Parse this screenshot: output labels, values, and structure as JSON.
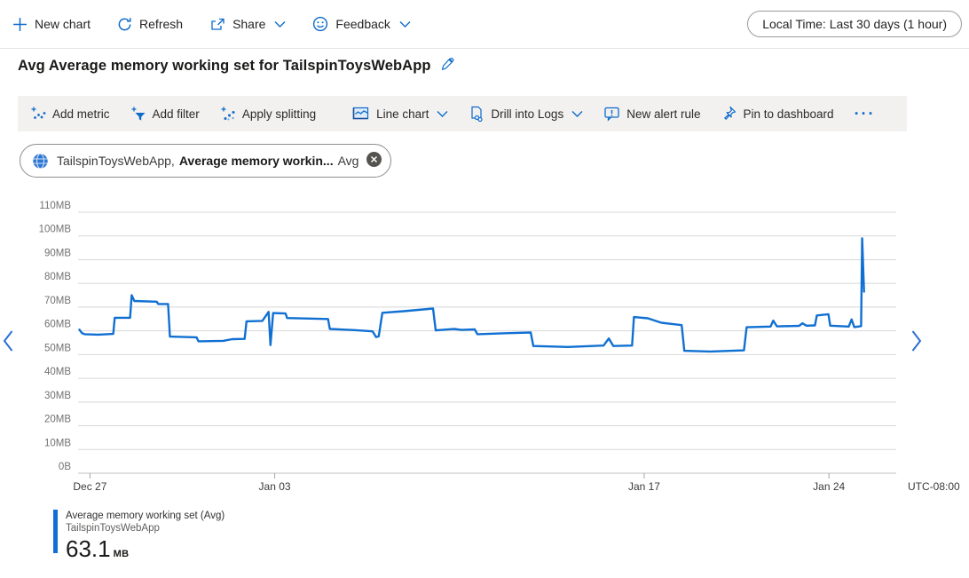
{
  "colors": {
    "accent": "#0d6bcb",
    "line": "#1070d2",
    "toolbar_bg": "#f2f1ef",
    "grid": "#d8d8d8",
    "axis_label": "#717171",
    "x_label": "#3b3a39"
  },
  "topbar": {
    "new_chart": "New chart",
    "refresh": "Refresh",
    "share": "Share",
    "feedback": "Feedback",
    "time_range": "Local Time: Last 30 days (1 hour)"
  },
  "title": {
    "text": "Avg Average memory working set for TailspinToysWebApp"
  },
  "chart_toolbar": {
    "add_metric": "Add metric",
    "add_filter": "Add filter",
    "apply_splitting": "Apply splitting",
    "line_chart": "Line chart",
    "drill_into_logs": "Drill into Logs",
    "new_alert_rule": "New alert rule",
    "pin_to_dashboard": "Pin to dashboard",
    "overflow": "···"
  },
  "metric_pill": {
    "resource": "TailspinToysWebApp,",
    "metric": "Average memory workin...",
    "aggregation": "Avg"
  },
  "icons": {
    "topbar": [
      "plus-icon",
      "refresh-icon",
      "share-icon",
      "chevron-down-icon",
      "smiley-icon"
    ],
    "chart_toolbar": [
      "add-metric-icon",
      "add-filter-icon",
      "apply-splitting-icon",
      "line-chart-icon",
      "drill-logs-icon",
      "alert-icon",
      "pin-icon",
      "ellipsis-icon"
    ],
    "other": [
      "pencil-icon",
      "globe-icon",
      "close-circle-icon",
      "chevron-left-icon",
      "chevron-right-icon"
    ]
  },
  "chart_data": {
    "type": "line",
    "title": "Avg Average memory working set for TailspinToysWebApp",
    "unit": "MB",
    "grid": true,
    "legend_position": "bottom-left",
    "ylim": [
      0,
      110
    ],
    "y_ticks": [
      {
        "value": 110,
        "label": "110MB"
      },
      {
        "value": 100,
        "label": "100MB"
      },
      {
        "value": 90,
        "label": "90MB"
      },
      {
        "value": 80,
        "label": "80MB"
      },
      {
        "value": 70,
        "label": "70MB"
      },
      {
        "value": 60,
        "label": "60MB"
      },
      {
        "value": 50,
        "label": "50MB"
      },
      {
        "value": 40,
        "label": "40MB"
      },
      {
        "value": 30,
        "label": "30MB"
      },
      {
        "value": 20,
        "label": "20MB"
      },
      {
        "value": 10,
        "label": "10MB"
      },
      {
        "value": 0,
        "label": "0B"
      }
    ],
    "x_range_days": [
      -0.45,
      30.55
    ],
    "x_ticks": [
      {
        "day": 0,
        "label": "Dec 27"
      },
      {
        "day": 7,
        "label": "Jan 03"
      },
      {
        "day": 21,
        "label": "Jan 17"
      },
      {
        "day": 28,
        "label": "Jan 24"
      }
    ],
    "timezone": "UTC-08:00",
    "series": [
      {
        "name": "Average memory working set (Avg)",
        "resource": "TailspinToysWebApp",
        "aggregation": "Avg",
        "color": "#1070d2",
        "points_day_mb": [
          [
            -0.4,
            60.5
          ],
          [
            -0.3,
            59.0
          ],
          [
            -0.2,
            58.6
          ],
          [
            0.3,
            58.4
          ],
          [
            0.88,
            58.7
          ],
          [
            0.94,
            65.5
          ],
          [
            1.52,
            65.5
          ],
          [
            1.58,
            75.0
          ],
          [
            1.68,
            72.6
          ],
          [
            2.53,
            72.3
          ],
          [
            2.59,
            71.3
          ],
          [
            2.96,
            71.3
          ],
          [
            3.03,
            57.6
          ],
          [
            4.04,
            57.3
          ],
          [
            4.11,
            55.6
          ],
          [
            5.05,
            55.8
          ],
          [
            5.39,
            56.5
          ],
          [
            5.86,
            56.6
          ],
          [
            5.93,
            64.0
          ],
          [
            6.53,
            64.2
          ],
          [
            6.77,
            68.0
          ],
          [
            6.84,
            54.0
          ],
          [
            6.94,
            67.5
          ],
          [
            7.41,
            67.3
          ],
          [
            7.47,
            65.4
          ],
          [
            9.02,
            65.0
          ],
          [
            9.09,
            60.8
          ],
          [
            10.03,
            60.3
          ],
          [
            10.71,
            59.8
          ],
          [
            10.84,
            57.4
          ],
          [
            10.94,
            57.7
          ],
          [
            11.08,
            67.6
          ],
          [
            11.89,
            68.3
          ],
          [
            13.0,
            69.4
          ],
          [
            13.1,
            60.2
          ],
          [
            13.8,
            60.8
          ],
          [
            14.07,
            60.4
          ],
          [
            14.58,
            60.6
          ],
          [
            14.68,
            58.6
          ],
          [
            15.76,
            59.0
          ],
          [
            16.7,
            59.3
          ],
          [
            16.8,
            53.6
          ],
          [
            18.11,
            53.2
          ],
          [
            19.46,
            53.8
          ],
          [
            19.66,
            56.8
          ],
          [
            19.83,
            53.6
          ],
          [
            20.54,
            53.8
          ],
          [
            20.61,
            65.8
          ],
          [
            21.14,
            65.3
          ],
          [
            21.65,
            63.4
          ],
          [
            22.42,
            62.4
          ],
          [
            22.52,
            51.6
          ],
          [
            23.5,
            51.3
          ],
          [
            24.78,
            51.8
          ],
          [
            24.88,
            61.5
          ],
          [
            25.79,
            61.8
          ],
          [
            25.89,
            64.3
          ],
          [
            26.03,
            61.9
          ],
          [
            26.87,
            62.1
          ],
          [
            27.0,
            63.2
          ],
          [
            27.14,
            62.2
          ],
          [
            27.47,
            62.3
          ],
          [
            27.54,
            66.5
          ],
          [
            27.98,
            67.0
          ],
          [
            28.05,
            62.2
          ],
          [
            28.75,
            61.8
          ],
          [
            28.86,
            64.8
          ],
          [
            28.96,
            61.6
          ],
          [
            29.16,
            61.9
          ],
          [
            29.22,
            62.0
          ],
          [
            29.26,
            99.0
          ],
          [
            29.33,
            76.5
          ]
        ]
      }
    ]
  },
  "legend": {
    "metric": "Average memory working set (Avg)",
    "resource": "TailspinToysWebApp",
    "value": "63.1",
    "unit": "MB"
  }
}
